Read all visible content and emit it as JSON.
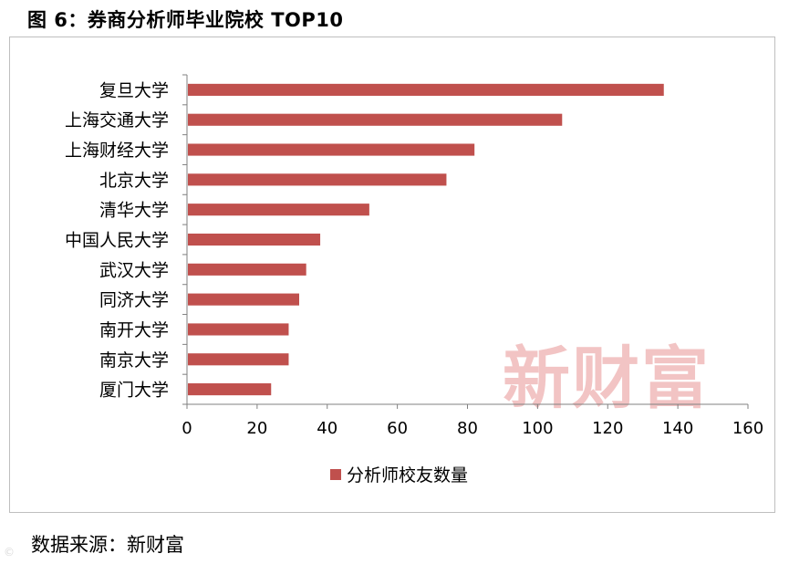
{
  "header": {
    "title": "图 6：券商分析师毕业院校 TOP10"
  },
  "footer": {
    "source": "数据来源：新财富"
  },
  "watermark": {
    "text": "新财富",
    "color": "#f2c4c4"
  },
  "chart_data": {
    "type": "bar",
    "orientation": "horizontal",
    "categories": [
      "复旦大学",
      "上海交通大学",
      "上海财经大学",
      "北京大学",
      "清华大学",
      "中国人民大学",
      "武汉大学",
      "同济大学",
      "南开大学",
      "南京大学",
      "厦门大学"
    ],
    "series": [
      {
        "name": "分析师校友数量",
        "values": [
          136,
          107,
          82,
          74,
          52,
          38,
          34,
          32,
          29,
          29,
          24
        ],
        "color": "#c0504d"
      }
    ],
    "xlim": [
      0,
      160
    ],
    "xticks": [
      0,
      20,
      40,
      60,
      80,
      100,
      120,
      140,
      160
    ],
    "grid": false,
    "legend_position": "bottom"
  }
}
